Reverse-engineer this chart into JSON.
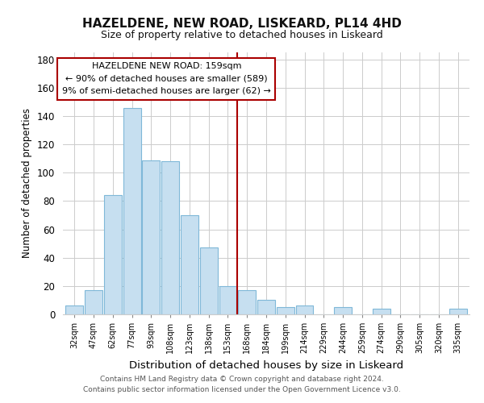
{
  "title": "HAZELDENE, NEW ROAD, LISKEARD, PL14 4HD",
  "subtitle": "Size of property relative to detached houses in Liskeard",
  "xlabel": "Distribution of detached houses by size in Liskeard",
  "ylabel": "Number of detached properties",
  "bar_labels": [
    "32sqm",
    "47sqm",
    "62sqm",
    "77sqm",
    "93sqm",
    "108sqm",
    "123sqm",
    "138sqm",
    "153sqm",
    "168sqm",
    "184sqm",
    "199sqm",
    "214sqm",
    "229sqm",
    "244sqm",
    "259sqm",
    "274sqm",
    "290sqm",
    "305sqm",
    "320sqm",
    "335sqm"
  ],
  "bar_values": [
    6,
    17,
    84,
    146,
    109,
    108,
    70,
    47,
    20,
    17,
    10,
    5,
    6,
    0,
    5,
    0,
    4,
    0,
    0,
    0,
    4
  ],
  "bar_color": "#c6dff0",
  "bar_edge_color": "#7fb8d8",
  "vline_color": "#aa0000",
  "annotation_title": "HAZELDENE NEW ROAD: 159sqm",
  "annotation_line1": "← 90% of detached houses are smaller (589)",
  "annotation_line2": "9% of semi-detached houses are larger (62) →",
  "annotation_box_color": "#ffffff",
  "annotation_box_edge": "#aa0000",
  "ylim": [
    0,
    185
  ],
  "yticks": [
    0,
    20,
    40,
    60,
    80,
    100,
    120,
    140,
    160,
    180
  ],
  "footer1": "Contains HM Land Registry data © Crown copyright and database right 2024.",
  "footer2": "Contains public sector information licensed under the Open Government Licence v3.0."
}
